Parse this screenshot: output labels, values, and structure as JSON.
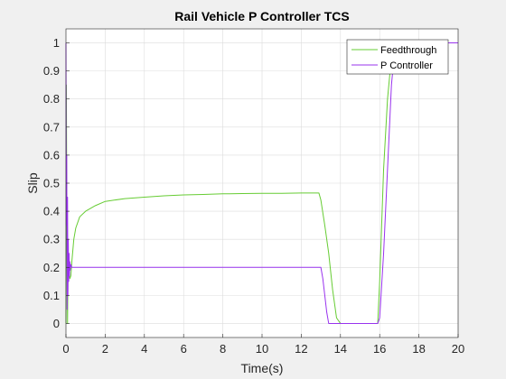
{
  "chart_data": {
    "type": "line",
    "title": "Rail Vehicle P Controller TCS",
    "xlabel": "Time(s)",
    "ylabel": "Slip",
    "xlim": [
      0,
      20
    ],
    "ylim": [
      -0.05,
      1.05
    ],
    "xticks": [
      0,
      2,
      4,
      6,
      8,
      10,
      12,
      14,
      16,
      18,
      20
    ],
    "yticks": [
      0,
      0.1,
      0.2,
      0.3,
      0.4,
      0.5,
      0.6,
      0.7,
      0.8,
      0.9,
      1
    ],
    "xtick_labels": [
      "0",
      "2",
      "4",
      "6",
      "8",
      "10",
      "12",
      "14",
      "16",
      "18",
      "20"
    ],
    "ytick_labels": [
      "0",
      "0.1",
      "0.2",
      "0.3",
      "0.4",
      "0.5",
      "0.6",
      "0.7",
      "0.8",
      "0.9",
      "1"
    ],
    "grid": true,
    "legend_position": "top-right",
    "series": [
      {
        "name": "Feedthrough",
        "color": "#66cc33",
        "x": [
          0,
          0.02,
          0.05,
          0.08,
          0.1,
          0.15,
          0.2,
          0.25,
          0.3,
          0.4,
          0.5,
          0.7,
          1.0,
          1.5,
          2,
          3,
          4,
          5,
          6,
          7,
          8,
          9,
          10,
          11,
          12,
          12.9,
          13.0,
          13.2,
          13.4,
          13.6,
          13.8,
          14,
          15,
          15.9,
          16.0,
          16.1,
          16.2,
          16.4,
          16.6,
          16.8,
          16.9,
          17,
          18,
          19,
          20
        ],
        "y": [
          0,
          0.85,
          0.3,
          0.0,
          0.15,
          0.18,
          0.16,
          0.17,
          0.22,
          0.3,
          0.34,
          0.38,
          0.4,
          0.42,
          0.435,
          0.445,
          0.45,
          0.455,
          0.458,
          0.46,
          0.462,
          0.463,
          0.464,
          0.464,
          0.465,
          0.465,
          0.44,
          0.35,
          0.25,
          0.12,
          0.02,
          0.0,
          0.0,
          0.0,
          0.15,
          0.35,
          0.55,
          0.8,
          0.95,
          1.0,
          1.0,
          1.0,
          1.0,
          1.0,
          1.0
        ]
      },
      {
        "name": "P Controller",
        "color": "#9933ee",
        "x": [
          0,
          0.02,
          0.04,
          0.06,
          0.08,
          0.1,
          0.12,
          0.14,
          0.16,
          0.18,
          0.2,
          0.22,
          0.25,
          0.3,
          0.4,
          0.6,
          1,
          2,
          4,
          6,
          8,
          10,
          12,
          12.9,
          13.0,
          13.1,
          13.2,
          13.3,
          13.4,
          13.6,
          14,
          15,
          15.9,
          16.0,
          16.2,
          16.4,
          16.6,
          16.8,
          16.9,
          17,
          18,
          19,
          20
        ],
        "y": [
          1.0,
          0.35,
          0.6,
          0.05,
          0.45,
          0.1,
          0.3,
          0.15,
          0.25,
          0.17,
          0.22,
          0.19,
          0.21,
          0.2,
          0.2,
          0.2,
          0.2,
          0.2,
          0.2,
          0.2,
          0.2,
          0.2,
          0.2,
          0.2,
          0.2,
          0.16,
          0.1,
          0.04,
          0.0,
          0.0,
          0.0,
          0.0,
          0.0,
          0.02,
          0.25,
          0.55,
          0.85,
          1.0,
          1.0,
          1.0,
          1.0,
          1.0,
          1.0
        ]
      }
    ]
  }
}
